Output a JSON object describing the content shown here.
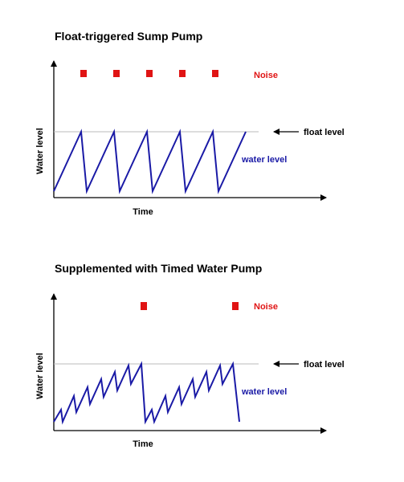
{
  "colors": {
    "axis": "#000000",
    "float_line": "#bbbbbb",
    "water_line": "#1a1aa6",
    "noise": "#e01414",
    "water_label": "#1a1aa6",
    "noise_label": "#e01414"
  },
  "legend": {
    "noise": "Noise",
    "float_level": "float level",
    "water_level": "water level"
  },
  "axes": {
    "x_label": "Time",
    "y_label": "Water level"
  },
  "panels": [
    {
      "title": "Float-triggered Sump Pump",
      "noise_count": 5,
      "noise_events": 5
    },
    {
      "title": "Supplemented with Timed Water Pump",
      "noise_count": 2,
      "noise_events": 2
    }
  ]
}
